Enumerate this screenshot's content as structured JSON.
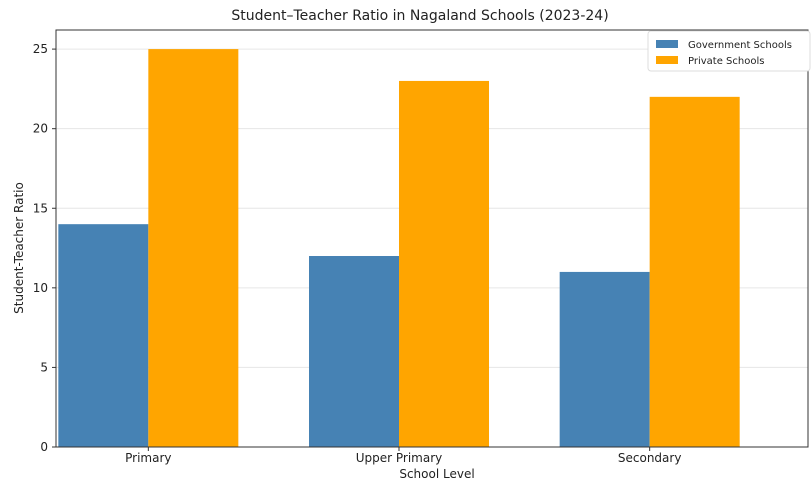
{
  "chart_data": {
    "type": "bar",
    "title": "Student–Teacher Ratio in Nagaland Schools (2023-24)",
    "xlabel": "School Level",
    "ylabel": "Student-Teacher Ratio",
    "categories": [
      "Primary",
      "Upper Primary",
      "Secondary"
    ],
    "series": [
      {
        "name": "Government Schools",
        "values": [
          14,
          12,
          11
        ],
        "color": "#4682b4"
      },
      {
        "name": "Private Schools",
        "values": [
          25,
          23,
          22
        ],
        "color": "#ffa500"
      }
    ],
    "ylim": [
      0,
      26.2
    ],
    "yticks": [
      0,
      5,
      10,
      15,
      20,
      25
    ],
    "grid": true,
    "legend_position": "top-right"
  }
}
